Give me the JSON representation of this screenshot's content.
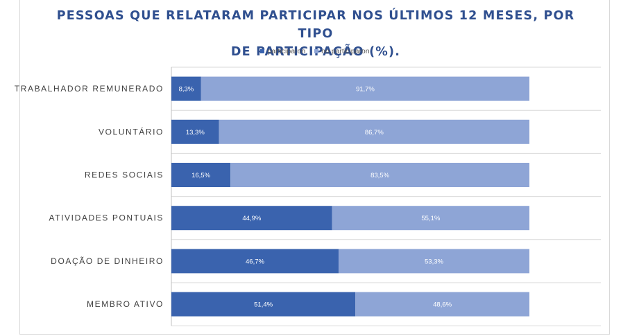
{
  "chart_data": {
    "type": "bar",
    "orientation": "horizontal",
    "stacked": true,
    "title_lines": [
      "PESSOAS QUE RELATARAM PARTICIPAR NOS ÚLTIMOS 12 MESES, POR TIPO",
      "DE PARTICIPAÇÃO (%)."
    ],
    "categories": [
      "TRABALHADOR REMUNERADO",
      "VOLUNTÁRIO",
      "REDES SOCIAIS",
      "ATIVIDADES PONTUAIS",
      "DOAÇÃO DE DINHEIRO",
      "MEMBRO ATIVO"
    ],
    "series": [
      {
        "name": "participaron",
        "color": "#3a63ae",
        "values": [
          8.3,
          13.3,
          16.5,
          44.9,
          46.7,
          51.4
        ],
        "labels": [
          "8,3%",
          "13,3%",
          "16,5%",
          "44,9%",
          "46,7%",
          "51,4%"
        ]
      },
      {
        "name": "no participaron",
        "color": "#8ea5d6",
        "values": [
          91.7,
          86.7,
          83.5,
          55.1,
          53.3,
          48.6
        ],
        "labels": [
          "91,7%",
          "86,7%",
          "83,5%",
          "55,1%",
          "53,3%",
          "48,6%"
        ]
      }
    ],
    "xlim": [
      0,
      100
    ],
    "legend_position": "top"
  }
}
